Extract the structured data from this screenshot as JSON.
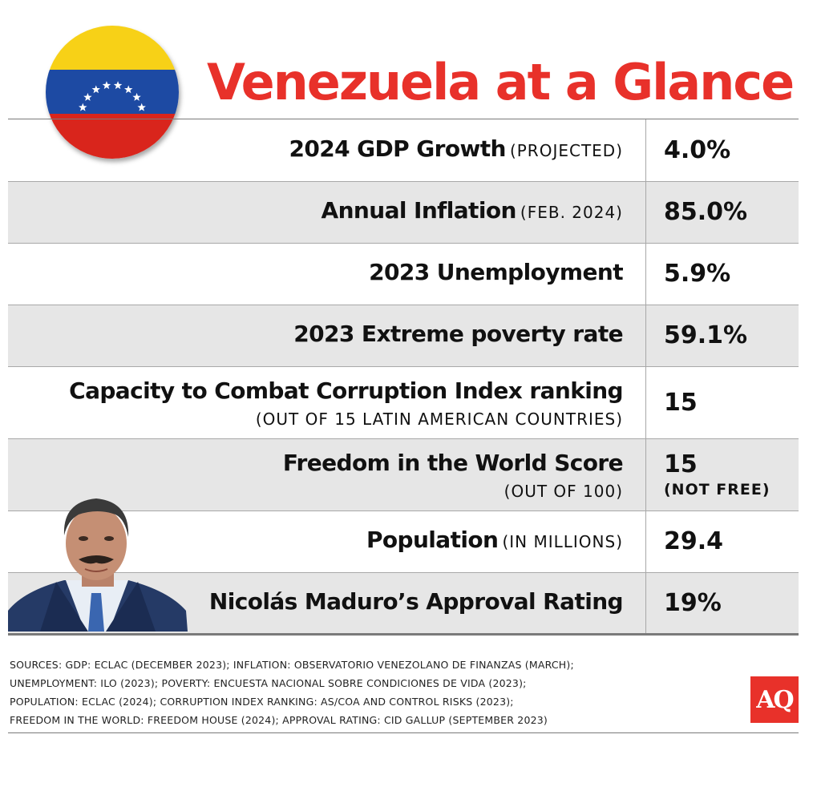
{
  "title": "Venezuela at a Glance",
  "colors": {
    "accent": "#e8312a",
    "row_shade": "#e6e6e6",
    "flag_yellow": "#f7d117",
    "flag_blue": "#1d4aa3",
    "flag_red": "#d9251c"
  },
  "rows": [
    {
      "label": "2024 GDP Growth",
      "note": "(PROJECTED)",
      "value": "4.0%"
    },
    {
      "label": "Annual Inflation",
      "note": "(FEB. 2024)",
      "value": "85.0%"
    },
    {
      "label": "2023 Unemployment",
      "value": "5.9%"
    },
    {
      "label": "2023 Extreme poverty rate",
      "value": "59.1%"
    },
    {
      "label": "Capacity to Combat Corruption Index ranking",
      "sub": "(OUT OF 15 LATIN AMERICAN COUNTRIES)",
      "value": "15"
    },
    {
      "label": "Freedom in the World Score",
      "sub": "(OUT OF 100)",
      "value": "15",
      "value_note": "(NOT FREE)"
    },
    {
      "label": "Population",
      "note": "(IN MILLIONS)",
      "value": "29.4"
    },
    {
      "label": "Nicolás Maduro’s Approval Rating",
      "value": "19%"
    }
  ],
  "sources": [
    "SOURCES: GDP: ECLAC (DECEMBER 2023); INFLATION: OBSERVATORIO VENEZOLANO DE FINANZAS (MARCH);",
    "UNEMPLOYMENT: ILO (2023); POVERTY: ENCUESTA NACIONAL SOBRE CONDICIONES DE VIDA (2023);",
    "POPULATION: ECLAC (2024); CORRUPTION INDEX RANKING: AS/COA AND CONTROL RISKS (2023);",
    "FREEDOM IN THE WORLD: FREEDOM HOUSE (2024); APPROVAL RATING: CID GALLUP (SEPTEMBER 2023)"
  ],
  "logo": "AQ",
  "icons": {
    "flag": "venezuela-flag-icon",
    "portrait": "maduro-portrait-image"
  }
}
